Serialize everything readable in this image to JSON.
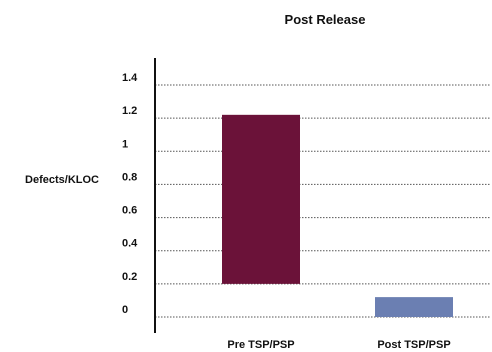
{
  "chart_data": {
    "type": "bar",
    "title": "Post Release",
    "ylabel": "Defects/KLOC",
    "xlabel": "",
    "categories": [
      "Pre TSP/PSP",
      "Post TSP/PSP"
    ],
    "values": [
      1.22,
      0.12
    ],
    "ylim": [
      0,
      1.4
    ],
    "yticks": [
      "0",
      "0.2",
      "0.4",
      "0.6",
      "0.8",
      "1",
      "1.2",
      "1.4"
    ],
    "grid": true,
    "legend": "none",
    "colors": [
      "#6b1239",
      "#6b7fb2"
    ],
    "grid_color": "#555555",
    "axis_color": "#111111"
  }
}
